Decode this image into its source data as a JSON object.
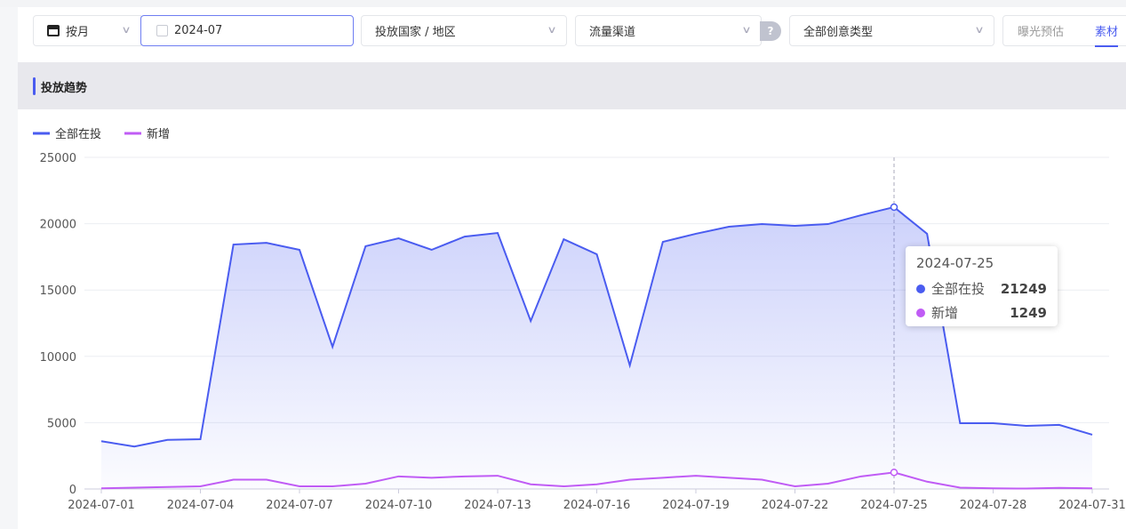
{
  "filters": {
    "period": "按月",
    "date": "2024-07",
    "country": "投放国家 / 地区",
    "channel": "流量渠道",
    "help": "?",
    "creative_type": "全部创意类型",
    "tabs": [
      "曝光预估",
      "素材"
    ],
    "active_tab": "素材"
  },
  "section_title": "投放趋势",
  "colors": {
    "series1": "#4a5cf0",
    "series2": "#c05cf5",
    "accent": "#4a5cf0"
  },
  "tooltip": {
    "date": "2024-07-25",
    "rows": [
      {
        "name": "全部在投",
        "value": "21249"
      },
      {
        "name": "新增",
        "value": "1249"
      }
    ]
  },
  "chart_data": {
    "type": "area",
    "title": "",
    "legend_position": "top-left",
    "grid": true,
    "ylim": [
      0,
      25000
    ],
    "yticks": [
      "0",
      "5000",
      "10000",
      "15000",
      "20000",
      "25000"
    ],
    "xticks": [
      "2024-07-01",
      "2024-07-04",
      "2024-07-07",
      "2024-07-10",
      "2024-07-13",
      "2024-07-16",
      "2024-07-19",
      "2024-07-22",
      "2024-07-25",
      "2024-07-28",
      "2024-07-31"
    ],
    "x_start": "2024-07-01",
    "x_end": "2024-07-31",
    "series": [
      {
        "name": "全部在投",
        "values": [
          3600,
          3200,
          3700,
          3750,
          18430,
          18560,
          18030,
          10720,
          18300,
          18900,
          18030,
          19030,
          19300,
          12670,
          18830,
          17700,
          9320,
          18630,
          19240,
          19770,
          19970,
          19840,
          19970,
          20640,
          21249,
          19240,
          4960,
          4960,
          4760,
          4830,
          4090
        ]
      },
      {
        "name": "新增",
        "values": [
          50,
          100,
          150,
          200,
          700,
          700,
          200,
          200,
          400,
          950,
          850,
          950,
          1000,
          350,
          200,
          350,
          700,
          850,
          1000,
          850,
          700,
          200,
          400,
          950,
          1249,
          550,
          100,
          50,
          30,
          80,
          50
        ]
      }
    ]
  }
}
